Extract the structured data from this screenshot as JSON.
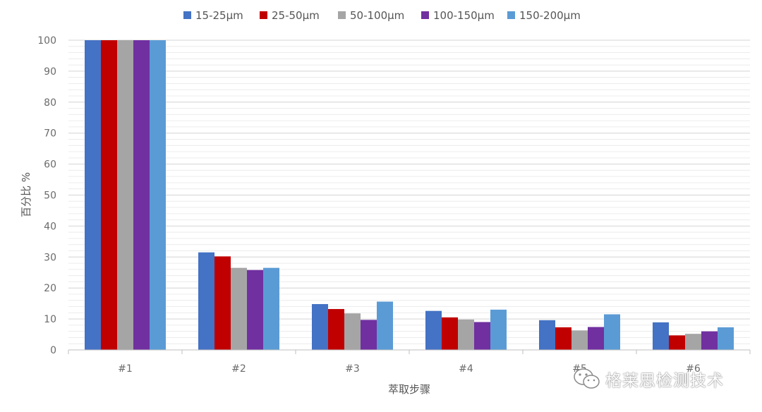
{
  "chart_data": {
    "type": "bar",
    "title": "",
    "xlabel": "萃取步骤",
    "ylabel": "百分比 %",
    "ylim": [
      0,
      100
    ],
    "yticks": [
      0,
      10,
      20,
      30,
      40,
      50,
      60,
      70,
      80,
      90,
      100
    ],
    "grid": true,
    "legend_position": "top-center",
    "categories": [
      "#1",
      "#2",
      "#3",
      "#4",
      "#5",
      "#6"
    ],
    "series": [
      {
        "name": "15-25μm",
        "color": "#4472C4",
        "values": [
          100,
          31.5,
          14.8,
          12.6,
          9.6,
          8.9
        ]
      },
      {
        "name": "25-50μm",
        "color": "#C00000",
        "values": [
          100,
          30.2,
          13.2,
          10.5,
          7.3,
          4.7
        ]
      },
      {
        "name": "50-100μm",
        "color": "#A5A5A5",
        "values": [
          100,
          26.5,
          11.8,
          9.8,
          6.3,
          5.2
        ]
      },
      {
        "name": "100-150μm",
        "color": "#7030A0",
        "values": [
          100,
          25.8,
          9.7,
          9.0,
          7.4,
          6.0
        ]
      },
      {
        "name": "150-200μm",
        "color": "#5B9BD5",
        "values": [
          100,
          26.5,
          15.6,
          13.0,
          11.5,
          7.3
        ]
      }
    ]
  },
  "watermark": {
    "text": "格莱思检测技术",
    "icon": "wechat-icon"
  }
}
